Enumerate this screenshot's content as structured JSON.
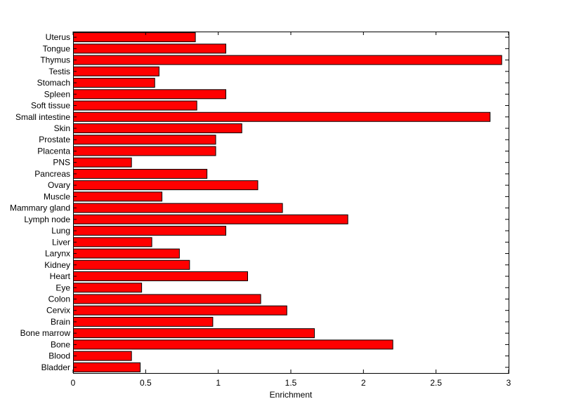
{
  "chart_data": {
    "type": "bar",
    "orientation": "horizontal",
    "title": "",
    "xlabel": "Enrichment",
    "ylabel": "",
    "xlim": [
      0,
      3
    ],
    "xticks": [
      0,
      0.5,
      1,
      1.5,
      2,
      2.5,
      3
    ],
    "xtick_labels": [
      "0",
      "0.5",
      "1",
      "1.5",
      "2",
      "2.5",
      "3"
    ],
    "grid": false,
    "legend": "none",
    "bar_color": "#ff0000",
    "categories": [
      "Bladder",
      "Blood",
      "Bone",
      "Bone marrow",
      "Brain",
      "Cervix",
      "Colon",
      "Eye",
      "Heart",
      "Kidney",
      "Larynx",
      "Liver",
      "Lung",
      "Lymph node",
      "Mammary gland",
      "Muscle",
      "Ovary",
      "Pancreas",
      "PNS",
      "Placenta",
      "Prostate",
      "Skin",
      "Small intestine",
      "Soft tissue",
      "Spleen",
      "Stomach",
      "Testis",
      "Thymus",
      "Tongue",
      "Uterus"
    ],
    "values": [
      0.46,
      0.4,
      2.2,
      1.66,
      0.96,
      1.47,
      1.29,
      0.47,
      1.2,
      0.8,
      0.73,
      0.54,
      1.05,
      1.89,
      1.44,
      0.61,
      1.27,
      0.92,
      0.4,
      0.98,
      0.98,
      1.16,
      2.87,
      0.85,
      1.05,
      0.56,
      0.59,
      2.95,
      1.05,
      0.84
    ]
  }
}
